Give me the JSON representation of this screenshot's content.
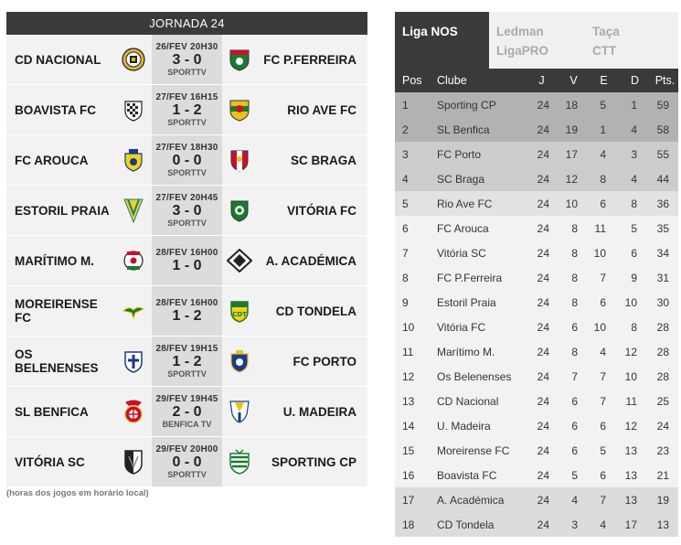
{
  "jornada": "JORNADA 24",
  "matches": [
    {
      "home": "CD NACIONAL",
      "away": "FC P.FERREIRA",
      "date": "26/FEV 20H30",
      "score": "3 - 0",
      "tv": "SPORTTV"
    },
    {
      "home": "BOAVISTA FC",
      "away": "RIO AVE FC",
      "date": "27/FEV 16H15",
      "score": "1 - 2",
      "tv": "SPORTTV"
    },
    {
      "home": "FC AROUCA",
      "away": "SC BRAGA",
      "date": "27/FEV 18H30",
      "score": "0 - 0",
      "tv": "SPORTTV"
    },
    {
      "home": "ESTORIL PRAIA",
      "away": "VITÓRIA FC",
      "date": "27/FEV 20H45",
      "score": "3 - 0",
      "tv": "SPORTTV"
    },
    {
      "home": "MARÍTIMO M.",
      "away": "A. ACADÉMICA",
      "date": "28/FEV 16H00",
      "score": "1 - 0",
      "tv": ""
    },
    {
      "home": "MOREIRENSE FC",
      "away": "CD TONDELA",
      "date": "28/FEV 16H00",
      "score": "1 - 2",
      "tv": ""
    },
    {
      "home": "OS BELENENSES",
      "away": "FC PORTO",
      "date": "28/FEV 19H15",
      "score": "1 - 2",
      "tv": "SPORTTV"
    },
    {
      "home": "SL BENFICA",
      "away": "U. MADEIRA",
      "date": "29/FEV 19H45",
      "score": "2 - 0",
      "tv": "BENFICA TV"
    },
    {
      "home": "VITÓRIA SC",
      "away": "SPORTING CP",
      "date": "29/FEV 20H00",
      "score": "0 - 0",
      "tv": "SPORTTV"
    }
  ],
  "footnote": "(horas dos jogos em horário local)",
  "tabs": [
    {
      "label": "Liga NOS",
      "sub": ""
    },
    {
      "label": "Ledman",
      "sub": "LigaPRO"
    },
    {
      "label": "Taça",
      "sub": "CTT"
    }
  ],
  "table_headers": {
    "pos": "Pos",
    "club": "Clube",
    "j": "J",
    "v": "V",
    "e": "E",
    "d": "D",
    "pts": "Pts."
  },
  "standings": [
    {
      "pos": "1",
      "club": "Sporting CP",
      "j": "24",
      "v": "18",
      "e": "5",
      "d": "1",
      "pts": "59"
    },
    {
      "pos": "2",
      "club": "SL Benfica",
      "j": "24",
      "v": "19",
      "e": "1",
      "d": "4",
      "pts": "58"
    },
    {
      "pos": "3",
      "club": "FC Porto",
      "j": "24",
      "v": "17",
      "e": "4",
      "d": "3",
      "pts": "55"
    },
    {
      "pos": "4",
      "club": "SC Braga",
      "j": "24",
      "v": "12",
      "e": "8",
      "d": "4",
      "pts": "44"
    },
    {
      "pos": "5",
      "club": "Rio Ave FC",
      "j": "24",
      "v": "10",
      "e": "6",
      "d": "8",
      "pts": "36"
    },
    {
      "pos": "6",
      "club": "FC Arouca",
      "j": "24",
      "v": "8",
      "e": "11",
      "d": "5",
      "pts": "35"
    },
    {
      "pos": "7",
      "club": "Vitória SC",
      "j": "24",
      "v": "8",
      "e": "10",
      "d": "6",
      "pts": "34"
    },
    {
      "pos": "8",
      "club": "FC P.Ferreira",
      "j": "24",
      "v": "8",
      "e": "7",
      "d": "9",
      "pts": "31"
    },
    {
      "pos": "9",
      "club": "Estoril Praia",
      "j": "24",
      "v": "8",
      "e": "6",
      "d": "10",
      "pts": "30"
    },
    {
      "pos": "10",
      "club": "Vitória FC",
      "j": "24",
      "v": "6",
      "e": "10",
      "d": "8",
      "pts": "28"
    },
    {
      "pos": "11",
      "club": "Marítimo M.",
      "j": "24",
      "v": "8",
      "e": "4",
      "d": "12",
      "pts": "28"
    },
    {
      "pos": "12",
      "club": "Os Belenenses",
      "j": "24",
      "v": "7",
      "e": "7",
      "d": "10",
      "pts": "28"
    },
    {
      "pos": "13",
      "club": "CD Nacional",
      "j": "24",
      "v": "6",
      "e": "7",
      "d": "11",
      "pts": "25"
    },
    {
      "pos": "14",
      "club": "U. Madeira",
      "j": "24",
      "v": "6",
      "e": "6",
      "d": "12",
      "pts": "24"
    },
    {
      "pos": "15",
      "club": "Moreirense FC",
      "j": "24",
      "v": "6",
      "e": "5",
      "d": "13",
      "pts": "23"
    },
    {
      "pos": "16",
      "club": "Boavista FC",
      "j": "24",
      "v": "5",
      "e": "6",
      "d": "13",
      "pts": "21"
    },
    {
      "pos": "17",
      "club": "A. Académica",
      "j": "24",
      "v": "4",
      "e": "7",
      "d": "13",
      "pts": "19"
    },
    {
      "pos": "18",
      "club": "CD Tondela",
      "j": "24",
      "v": "3",
      "e": "4",
      "d": "17",
      "pts": "13"
    }
  ],
  "row_colors": {
    "1": "#b2b2b2",
    "2": "#b2b2b2",
    "3": "#cccccc",
    "4": "#cccccc",
    "5": "#e2e2e2",
    "6": "#f2f2f2",
    "7": "#f2f2f2",
    "8": "#f2f2f2",
    "9": "#f2f2f2",
    "10": "#f2f2f2",
    "11": "#f2f2f2",
    "12": "#f2f2f2",
    "13": "#f2f2f2",
    "14": "#f2f2f2",
    "15": "#f2f2f2",
    "16": "#f2f2f2",
    "17": "#dcdcdc",
    "18": "#dcdcdc"
  },
  "crests": {
    "home": [
      "nacional-crest-icon",
      "boavista-crest-icon",
      "arouca-crest-icon",
      "estoril-crest-icon",
      "maritimo-crest-icon",
      "moreirense-crest-icon",
      "belenenses-crest-icon",
      "benfica-crest-icon",
      "vitoria-sc-crest-icon"
    ],
    "away": [
      "pacos-ferreira-crest-icon",
      "rio-ave-crest-icon",
      "braga-crest-icon",
      "vitoria-fc-crest-icon",
      "academica-crest-icon",
      "tondela-crest-icon",
      "porto-crest-icon",
      "uniao-madeira-crest-icon",
      "sporting-crest-icon"
    ]
  }
}
